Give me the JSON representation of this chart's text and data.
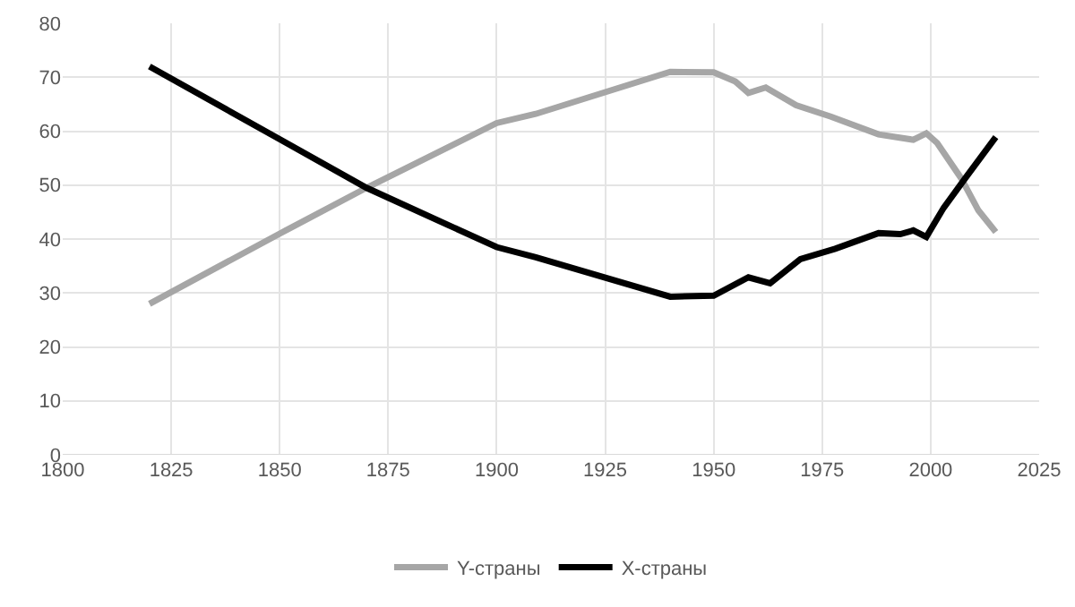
{
  "chart_data": {
    "type": "line",
    "xlim": [
      1800,
      2025
    ],
    "xticks": [
      1800,
      1825,
      1850,
      1875,
      1900,
      1925,
      1950,
      1975,
      2000,
      2025
    ],
    "ylim": [
      0,
      80
    ],
    "yticks": [
      0,
      10,
      20,
      30,
      40,
      50,
      60,
      70,
      80
    ],
    "grid": true,
    "legend": "bottom",
    "marker": "none",
    "line_style": "solid",
    "series": [
      {
        "name": "Y-страны",
        "color": "#a6a6a6",
        "x": [
          1820,
          1850,
          1870,
          1900,
          1909,
          1940,
          1950,
          1955,
          1958,
          1962,
          1969,
          1977,
          1988,
          1996,
          1999,
          2001.5,
          2007,
          2011,
          2015
        ],
        "values": [
          28,
          41,
          49.5,
          61.5,
          63.2,
          71,
          70.9,
          69.2,
          67.1,
          68.1,
          64.8,
          62.7,
          59.4,
          58.4,
          59.6,
          57.8,
          51.3,
          45.3,
          41.3
        ]
      },
      {
        "name": "X-страны",
        "color": "#000000",
        "x": [
          1820,
          1850,
          1870,
          1900,
          1909,
          1940,
          1950,
          1958,
          1963,
          1970,
          1978,
          1988,
          1993,
          1996,
          1999,
          2003,
          2008,
          2015
        ],
        "values": [
          72,
          58.5,
          49.5,
          38.5,
          36.6,
          29.3,
          29.5,
          32.9,
          31.8,
          36.3,
          38.2,
          41.1,
          40.9,
          41.6,
          40.4,
          45.8,
          51.3,
          58.9
        ]
      }
    ]
  }
}
